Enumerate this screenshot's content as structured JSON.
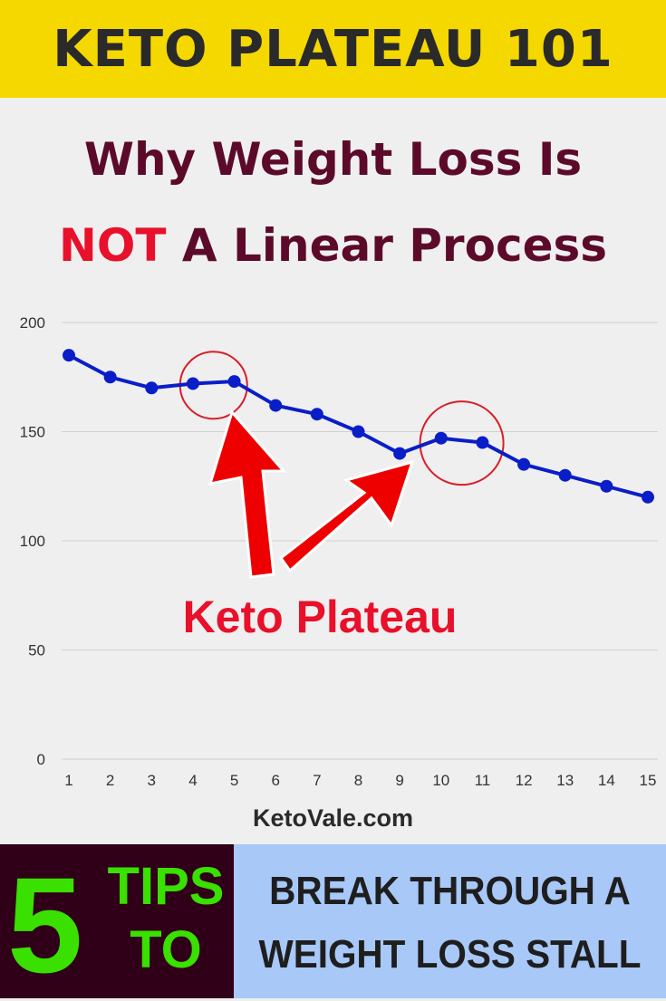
{
  "banner": {
    "title": "KETO PLATEAU 101"
  },
  "headline": {
    "line1": "Why Weight Loss Is",
    "line2_highlight": "NOT",
    "line2_rest": "A Linear Process"
  },
  "chart_data": {
    "type": "line",
    "x": [
      1,
      2,
      3,
      4,
      5,
      6,
      7,
      8,
      9,
      10,
      11,
      12,
      13,
      14,
      15
    ],
    "series": [
      {
        "values": [
          185,
          175,
          170,
          172,
          173,
          162,
          158,
          150,
          140,
          147,
          145,
          135,
          130,
          125,
          120
        ]
      }
    ],
    "ylim": [
      0,
      200
    ],
    "yticks": [
      0,
      50,
      100,
      150,
      200
    ],
    "xticks": [
      "1",
      "2",
      "3",
      "4",
      "5",
      "6",
      "7",
      "8",
      "9",
      "10",
      "11",
      "12",
      "13",
      "14",
      "15"
    ],
    "grid": true,
    "line_color": "#0a1ec8",
    "annotation": {
      "text": "Keto Plateau",
      "color": "#e8102a",
      "highlighted_ranges": [
        [
          4,
          5
        ],
        [
          10,
          11
        ]
      ]
    }
  },
  "footer": {
    "site": "KetoVale.com",
    "number": "5",
    "tips_word_1": "TIPS",
    "tips_word_2": "TO",
    "cta_line_1": "BREAK THROUGH A",
    "cta_line_2": "WEIGHT LOSS STALL"
  },
  "colors": {
    "banner_bg": "#f5d800",
    "headline": "#5c0a2a",
    "highlight": "#e8102a",
    "tips_green": "#39e000",
    "cta_bg": "#a8c8f8"
  }
}
